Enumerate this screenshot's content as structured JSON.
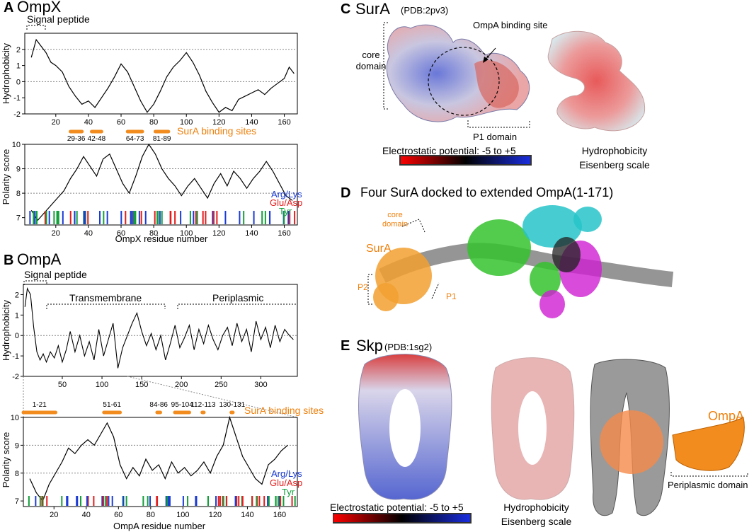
{
  "colors": {
    "orange": "#f28c1e",
    "arg_lys": "#1a3bd6",
    "glu_asp": "#e21d1d",
    "tyr": "#12a03a",
    "gray_dots": "#888888"
  },
  "panelA": {
    "letter": "A",
    "title": "OmpX",
    "signal_label": "Signal peptide",
    "hyd_ylabel": "Hydrophobicity",
    "pol_ylabel": "Polarity score",
    "xlabel": "OmpX residue number",
    "sura_label": "SurA binding sites",
    "legend": {
      "arg": "Arg/Lys",
      "glu": "Glu/Asp",
      "tyr": "Tyr"
    }
  },
  "panelB": {
    "letter": "B",
    "title": "OmpA",
    "signal_label": "Signal peptide",
    "tm_label": "Transmembrane",
    "peri_label": "Periplasmic",
    "hyd_ylabel": "Hydrophobicity",
    "pol_ylabel": "Polarity score",
    "xlabel": "OmpA residue number",
    "sura_label": "SurA binding sites",
    "legend": {
      "arg": "Arg/Lys",
      "glu": "Glu/Asp",
      "tyr": "Tyr"
    }
  },
  "panelC": {
    "letter": "C",
    "title": "SurA",
    "pdb": "(PDB:2pv3)",
    "ompa_site": "OmpA binding site",
    "core": "core domain",
    "p1": "P1 domain",
    "elec_label": "Electrostatic potential: -5 to +5",
    "hyd_line1": "Hydrophobicity",
    "hyd_line2": "Eisenberg scale"
  },
  "panelD": {
    "letter": "D",
    "title": "Four SurA docked to extended OmpA(1-171)",
    "core": "core domain",
    "sura": "SurA",
    "p1": "P1",
    "p2": "P2"
  },
  "panelE": {
    "letter": "E",
    "title": "Skp",
    "pdb": "(PDB:1sg2)",
    "elec_label": "Electrostatic potential: -5 to +5",
    "hyd_line1": "Hydrophobicity",
    "hyd_line2": "Eisenberg scale",
    "ompa": "OmpA",
    "peri": "Periplasmic domain"
  },
  "chart_data": [
    {
      "type": "line",
      "title": "OmpX",
      "ylabel": "Hydrophobicity",
      "xlim": [
        1,
        168
      ],
      "ylim": [
        -2,
        3
      ],
      "yticks": [
        -2,
        -1,
        0,
        1,
        2
      ],
      "xticks": [
        20,
        40,
        60,
        80,
        100,
        120,
        140,
        160
      ],
      "dotted_gridlines": [
        0,
        2
      ],
      "x": [
        5,
        8,
        11,
        14,
        17,
        20,
        24,
        28,
        32,
        36,
        40,
        44,
        48,
        52,
        56,
        60,
        64,
        68,
        72,
        76,
        80,
        84,
        88,
        92,
        96,
        100,
        104,
        108,
        112,
        116,
        120,
        124,
        128,
        132,
        136,
        140,
        144,
        148,
        152,
        156,
        160,
        163,
        166
      ],
      "y": [
        1.5,
        2.6,
        2.2,
        1.8,
        1.2,
        1.0,
        0.6,
        -0.3,
        -0.9,
        -1.4,
        -1.2,
        -1.6,
        -1.0,
        -0.4,
        0.3,
        1.1,
        0.6,
        -0.3,
        -1.2,
        -1.9,
        -1.4,
        -0.6,
        0.3,
        0.9,
        1.3,
        1.8,
        1.2,
        0.4,
        -0.6,
        -1.3,
        -1.9,
        -1.6,
        -1.8,
        -1.1,
        -0.9,
        -0.7,
        -0.5,
        -0.8,
        -0.4,
        -0.1,
        0.2,
        0.9,
        0.5
      ]
    },
    {
      "type": "line",
      "title": "OmpX",
      "ylabel": "Polarity score",
      "xlabel": "OmpX residue number",
      "xlim": [
        1,
        168
      ],
      "ylim": [
        6.7,
        10
      ],
      "yticks": [
        7,
        8,
        9,
        10
      ],
      "xticks": [
        20,
        40,
        60,
        80,
        100,
        120,
        140,
        160
      ],
      "dotted_gridlines": [
        8,
        9
      ],
      "x": [
        5,
        9,
        13,
        17,
        21,
        25,
        29,
        33,
        37,
        41,
        45,
        49,
        53,
        57,
        61,
        65,
        69,
        73,
        77,
        81,
        85,
        89,
        93,
        97,
        101,
        105,
        109,
        113,
        117,
        121,
        125,
        129,
        133,
        137,
        141,
        145,
        149,
        153,
        157,
        161,
        165
      ],
      "y": [
        7.3,
        6.9,
        7.2,
        7.5,
        7.8,
        8.1,
        8.6,
        9.0,
        9.5,
        9.1,
        8.7,
        9.4,
        9.6,
        9.0,
        8.4,
        8.0,
        8.7,
        9.5,
        10.0,
        9.6,
        9.0,
        8.6,
        8.3,
        7.9,
        8.3,
        8.6,
        8.2,
        7.8,
        8.4,
        8.8,
        8.3,
        8.9,
        8.6,
        8.2,
        8.6,
        8.9,
        9.3,
        8.9,
        8.4,
        7.9,
        7.7
      ]
    },
    {
      "type": "line",
      "title": "OmpA",
      "ylabel": "Hydrophobicity",
      "xlim": [
        1,
        346
      ],
      "ylim": [
        -2,
        2.5
      ],
      "yticks": [
        -2,
        -1,
        0,
        1,
        2
      ],
      "xticks": [
        50,
        100,
        150,
        200,
        250,
        300
      ],
      "dotted_gridlines": [
        0
      ],
      "x": [
        3,
        6,
        10,
        14,
        18,
        22,
        26,
        30,
        35,
        40,
        45,
        50,
        55,
        60,
        66,
        72,
        78,
        84,
        90,
        96,
        102,
        108,
        114,
        120,
        126,
        132,
        138,
        144,
        150,
        156,
        162,
        168,
        174,
        180,
        186,
        192,
        198,
        204,
        210,
        216,
        222,
        228,
        234,
        240,
        246,
        252,
        258,
        264,
        270,
        276,
        282,
        288,
        294,
        300,
        306,
        312,
        318,
        324,
        330,
        336,
        341
      ],
      "y": [
        1.4,
        2.3,
        2.0,
        0.4,
        -0.8,
        -1.2,
        -0.9,
        -1.3,
        -0.8,
        -1.1,
        -0.5,
        -1.3,
        -0.7,
        0.2,
        -0.8,
        0.0,
        -1.0,
        -0.3,
        -1.2,
        0.3,
        -1.0,
        -0.2,
        0.6,
        -1.6,
        -0.6,
        0.0,
        0.6,
        1.1,
        0.2,
        -0.5,
        0.1,
        -0.7,
        0.0,
        -1.2,
        -0.4,
        0.5,
        -0.6,
        -0.1,
        0.5,
        -0.7,
        0.3,
        -0.4,
        0.5,
        -0.2,
        -0.7,
        0.0,
        0.4,
        -0.5,
        0.6,
        -0.3,
        0.3,
        -0.8,
        0.7,
        -0.2,
        0.4,
        -0.6,
        0.5,
        -0.3,
        0.3,
        0.0,
        -0.2
      ]
    },
    {
      "type": "line",
      "title": "OmpA",
      "ylabel": "Polarity score",
      "xlabel": "OmpA residue number",
      "xlim": [
        1,
        171
      ],
      "ylim": [
        6.8,
        10
      ],
      "yticks": [
        7,
        8,
        9,
        10
      ],
      "xticks": [
        20,
        40,
        60,
        80,
        100,
        120,
        140,
        160
      ],
      "dotted_gridlines": [
        8,
        9
      ],
      "x": [
        5,
        9,
        13,
        17,
        21,
        25,
        29,
        33,
        37,
        41,
        45,
        49,
        53,
        57,
        61,
        65,
        69,
        73,
        77,
        81,
        85,
        89,
        93,
        97,
        101,
        105,
        109,
        113,
        117,
        121,
        125,
        129,
        133,
        137,
        141,
        145,
        149,
        153,
        157,
        161,
        165
      ],
      "y": [
        7.8,
        7.3,
        7.0,
        7.6,
        8.0,
        8.4,
        8.9,
        8.7,
        9.0,
        9.2,
        9.0,
        9.4,
        9.8,
        9.3,
        8.3,
        7.8,
        8.2,
        7.9,
        8.5,
        8.1,
        8.3,
        7.8,
        8.4,
        8.0,
        8.2,
        7.9,
        8.1,
        8.4,
        8.0,
        8.6,
        9.0,
        10.0,
        9.3,
        8.6,
        8.2,
        7.8,
        7.6,
        8.3,
        8.5,
        8.8,
        9.0
      ]
    }
  ],
  "ompx_sites": [
    {
      "label": "29-36",
      "start": 29,
      "end": 36
    },
    {
      "label": "42-48",
      "start": 42,
      "end": 48
    },
    {
      "label": "64-73",
      "start": 64,
      "end": 73
    },
    {
      "label": "81-89",
      "start": 81,
      "end": 89
    }
  ],
  "ompa_sites": [
    {
      "label": "1-21",
      "start": 1,
      "end": 21
    },
    {
      "label": "51-61",
      "start": 51,
      "end": 61
    },
    {
      "label": "84-86",
      "start": 84,
      "end": 86
    },
    {
      "label": "95-104",
      "start": 95,
      "end": 104
    },
    {
      "label": "112-113",
      "start": 112,
      "end": 113
    },
    {
      "label": "130-131",
      "start": 130,
      "end": 131
    }
  ]
}
